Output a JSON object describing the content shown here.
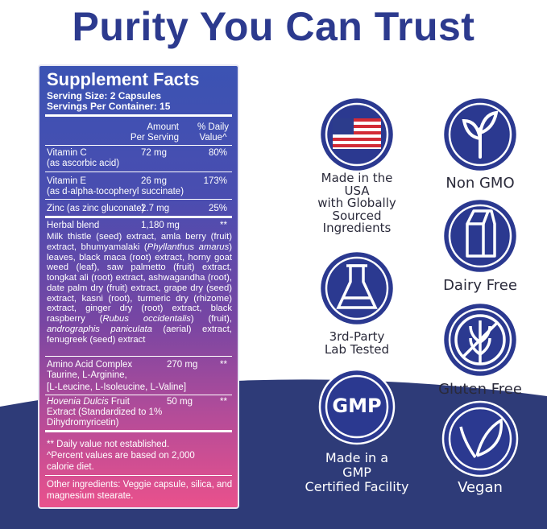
{
  "title": "Purity You Can Trust",
  "supplement_facts": {
    "heading": "Supplement Facts",
    "serving_size": "Serving Size: 2 Capsules",
    "servings_per_container": "Servings Per Container: 15",
    "amount_header": [
      "Amount",
      "Per Serving"
    ],
    "dv_header": [
      "% Daily",
      "Value^"
    ],
    "rows": [
      {
        "name": [
          "Vitamin C"
        ],
        "details": [
          "(as ascorbic acid)"
        ],
        "amount": "72 mg",
        "dv": "80%"
      },
      {
        "name": [
          "Vitamin E"
        ],
        "details": [
          "(as d-alpha-tocopheryl succinate)"
        ],
        "amount": "26 mg",
        "dv": "173%"
      },
      {
        "name": [
          "Zinc (as zinc gluconate)"
        ],
        "amount": "2.7 mg",
        "dv": "25%"
      },
      {
        "name": [
          "Herbal blend"
        ],
        "amount": "1,180 mg",
        "dv": "**",
        "description": [
          "Milk thistle (seed) extract, amla berry (fruit) extract, bhumyamalaki (",
          "Phyllanthus amarus",
          ") leaves, black maca (root) extract, horny goat weed (leaf), saw palmetto (fruit) extract, tongkat ali (root) extract, ashwagandha (root), date palm dry (fruit) extract, grape dry (seed) extract, kasni (root), turmeric dry (rhizome) extract, ginger dry (root) extract, black raspberry (",
          "Rubus occidentalis",
          ") (fruit), ",
          "andrographis paniculata",
          " (aerial) extract, fenugreek (seed) extract"
        ]
      },
      {
        "name": [
          "Amino Acid Complex"
        ],
        "details": [
          "Taurine, L-Arginine,",
          "[L-Leucine, L-Isoleucine, L-Valine]"
        ],
        "amount": "270 mg",
        "dv": "**"
      },
      {
        "name": [
          "Hovenia Dulcis",
          " Fruit"
        ],
        "details": [
          "Extract (Standardized to 1%",
          "Dihydromyricetin)"
        ],
        "amount": "50 mg",
        "dv": "**"
      }
    ],
    "footnotes": [
      "** Daily value not established.",
      "^Percent values are based on 2,000 calorie diet."
    ],
    "other_ingredients": "Other ingredients: Veggie capsule, silica, and magnesium stearate."
  },
  "badges": [
    {
      "lines": [
        "Made in the",
        "USA",
        "with Globally",
        "Sourced",
        "Ingredients"
      ]
    },
    {
      "lines": [
        "Non GMO"
      ]
    },
    {
      "lines": [
        "Dairy Free"
      ]
    },
    {
      "lines": [
        "3rd-Party",
        "Lab Tested"
      ]
    },
    {
      "lines": [
        "Gluten Free"
      ]
    },
    {
      "icon_text": "GMP",
      "lines": [
        "Made in a",
        "GMP",
        "Certified Facility"
      ]
    },
    {
      "lines": [
        "Vegan"
      ]
    }
  ]
}
